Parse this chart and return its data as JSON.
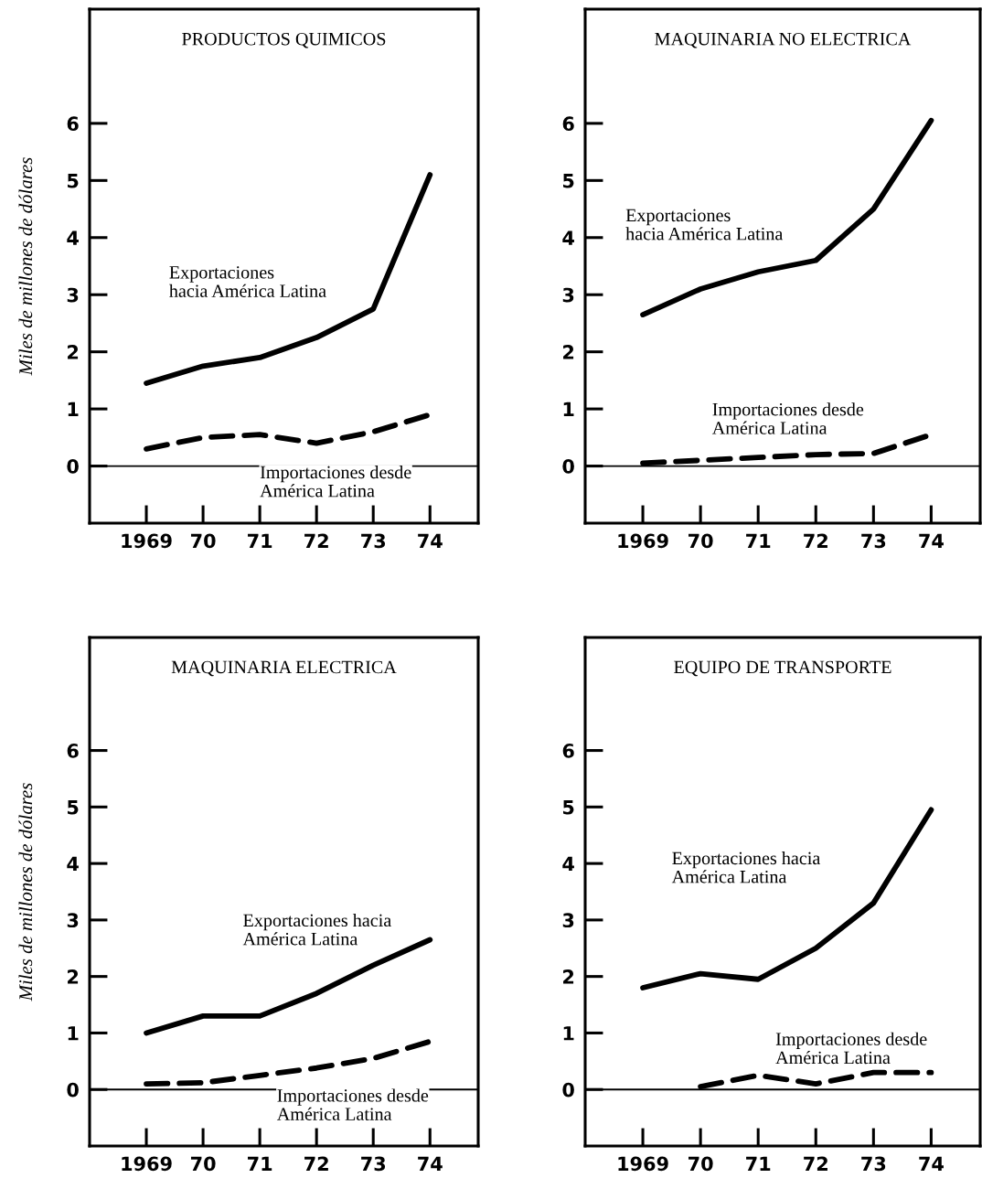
{
  "chart_data": [
    {
      "type": "line",
      "title": "PRODUCTOS QUIMICOS",
      "ylabel": "Miles de millones de dólares",
      "categories": [
        "1969",
        "70",
        "71",
        "72",
        "73",
        "74"
      ],
      "ylim": [
        -1,
        8
      ],
      "yticks": [
        0,
        1,
        2,
        3,
        4,
        5,
        6
      ],
      "ref_lines": [
        {
          "axis": "y",
          "value": 0,
          "color": "#000000"
        }
      ],
      "grid": false,
      "legend": false,
      "marker": "none",
      "series": [
        {
          "name": "Exportaciones\nhacia América Latina",
          "color": "#000000",
          "line_style": "solid",
          "values": [
            1.45,
            1.75,
            1.9,
            2.25,
            2.75,
            5.1
          ]
        },
        {
          "name": "Importaciones desde\nAmérica Latina",
          "color": "#000000",
          "line_style": "dashed",
          "values": [
            0.3,
            0.5,
            0.55,
            0.4,
            0.6,
            0.9
          ]
        }
      ]
    },
    {
      "type": "line",
      "title": "MAQUINARIA NO ELECTRICA",
      "categories": [
        "1969",
        "70",
        "71",
        "72",
        "73",
        "74"
      ],
      "ylim": [
        -1,
        8
      ],
      "yticks": [
        0,
        1,
        2,
        3,
        4,
        5,
        6
      ],
      "ref_lines": [
        {
          "axis": "y",
          "value": 0,
          "color": "#000000"
        }
      ],
      "grid": false,
      "legend": false,
      "marker": "none",
      "series": [
        {
          "name": "Exportaciones\nhacia América Latina",
          "color": "#000000",
          "line_style": "solid",
          "values": [
            2.65,
            3.1,
            3.4,
            3.6,
            4.5,
            6.05
          ]
        },
        {
          "name": "Importaciones desde\nAmérica Latina",
          "color": "#000000",
          "line_style": "dashed",
          "values": [
            0.05,
            0.1,
            0.15,
            0.2,
            0.22,
            0.55
          ]
        }
      ]
    },
    {
      "type": "line",
      "title": "MAQUINARIA ELECTRICA",
      "ylabel": "Miles de millones de dólares",
      "categories": [
        "1969",
        "70",
        "71",
        "72",
        "73",
        "74"
      ],
      "ylim": [
        -1,
        8
      ],
      "yticks": [
        0,
        1,
        2,
        3,
        4,
        5,
        6
      ],
      "ref_lines": [
        {
          "axis": "y",
          "value": 0,
          "color": "#000000"
        }
      ],
      "grid": false,
      "legend": false,
      "marker": "none",
      "series": [
        {
          "name": "Exportaciones hacia\nAmérica Latina",
          "color": "#000000",
          "line_style": "solid",
          "values": [
            1.0,
            1.3,
            1.3,
            1.7,
            2.2,
            2.65
          ]
        },
        {
          "name": "Importaciones desde\nAmérica Latina",
          "color": "#000000",
          "line_style": "dashed",
          "values": [
            0.1,
            0.12,
            0.25,
            0.38,
            0.55,
            0.85
          ]
        }
      ]
    },
    {
      "type": "line",
      "title": "EQUIPO DE TRANSPORTE",
      "categories": [
        "1969",
        "70",
        "71",
        "72",
        "73",
        "74"
      ],
      "ylim": [
        -1,
        8
      ],
      "yticks": [
        0,
        1,
        2,
        3,
        4,
        5,
        6
      ],
      "ref_lines": [
        {
          "axis": "y",
          "value": 0,
          "color": "#000000"
        }
      ],
      "grid": false,
      "legend": false,
      "marker": "none",
      "series": [
        {
          "name": "Exportaciones hacia\nAmérica Latina",
          "color": "#000000",
          "line_style": "solid",
          "values": [
            1.8,
            2.05,
            1.95,
            2.5,
            3.3,
            4.95
          ]
        },
        {
          "name": "Importaciones desde\nAmérica Latina",
          "color": "#000000",
          "line_style": "dashed",
          "values": [
            null,
            0.05,
            0.25,
            0.1,
            0.3,
            0.3
          ]
        }
      ]
    }
  ]
}
